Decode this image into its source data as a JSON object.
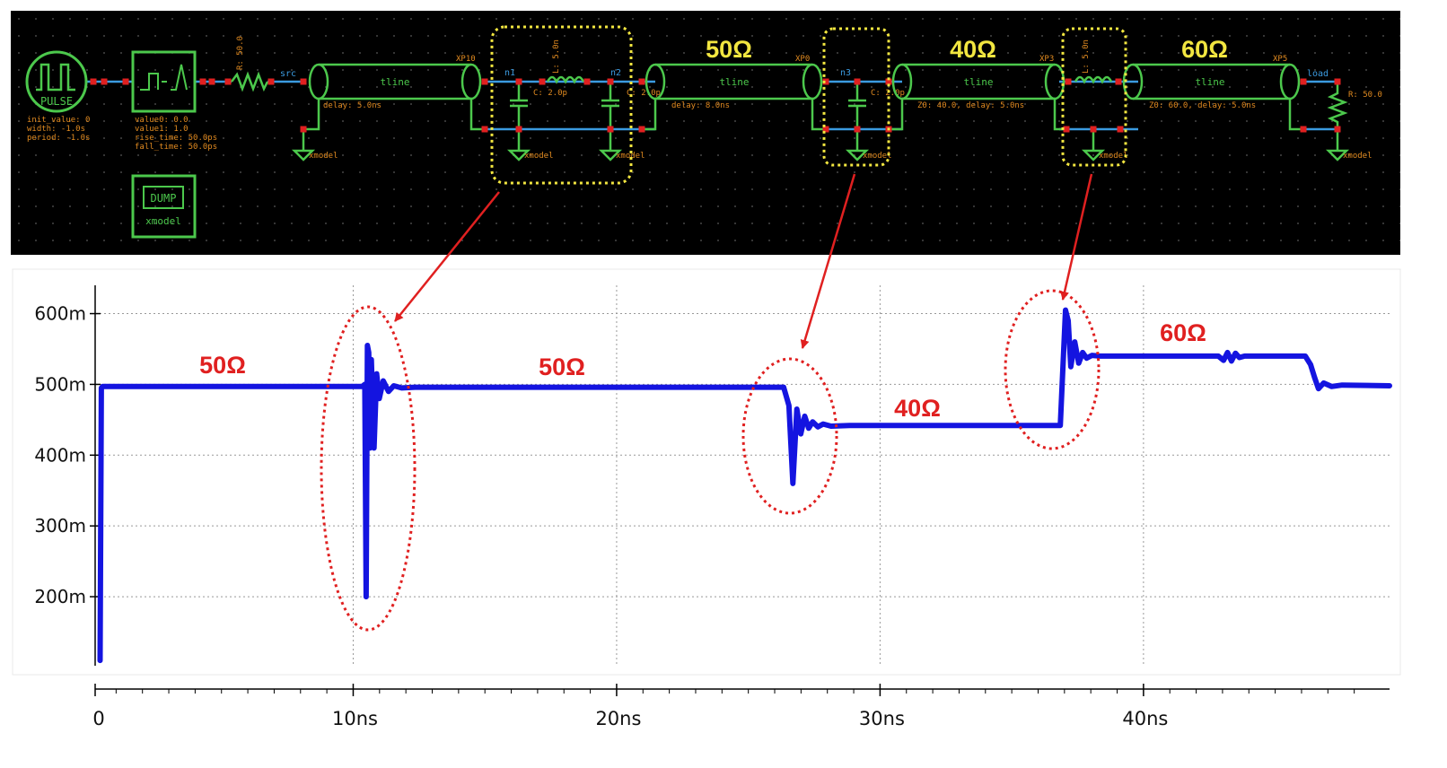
{
  "colors": {
    "schematic_bg": "#000000",
    "component": "#4CC84C",
    "wire": "#3B9BE0",
    "pin": "#E02020",
    "param_text": "#E08A20",
    "highlight_box": "#F2E640",
    "impedance_label_top": "#F2E640",
    "annotation": "#E02020",
    "waveform": "#1414E0",
    "grid": "#999999"
  },
  "schematic": {
    "pulse": {
      "label": "PULSE",
      "params": [
        "init_value: 0",
        "width: -1.0s",
        "period: -1.0s"
      ]
    },
    "source_block": {
      "params": [
        "value0: 0.0",
        "value1: 1.0",
        "rise_time: 50.0ps",
        "fall_time: 50.0ps"
      ]
    },
    "dump": {
      "label": "DUMP",
      "sublabel": "xmodel"
    },
    "resistor_src": {
      "label": "R: 50.0"
    },
    "net_src": "src",
    "tline1": {
      "name": "XP10",
      "label": "tline",
      "param": "delay: 5.0ns"
    },
    "node_n1": "n1",
    "node_n2": "n2",
    "inductor1": "L: 5.0n",
    "cap1": "C: 2.0p",
    "cap2": "C: 2.0p",
    "tline2": {
      "name": "XP0",
      "label": "tline",
      "param": "delay: 8.0ns"
    },
    "node_n3": "n3",
    "cap3": "C: 2.0p",
    "tline3": {
      "name": "XP3",
      "label": "tline",
      "param": "Z0: 40.0, delay: 5.0ns"
    },
    "inductor2": "L: 5.0n",
    "tline4": {
      "name": "XP5",
      "label": "tline",
      "param": "Z0: 60.0, delay: 5.0ns"
    },
    "net_load": "load",
    "resistor_load": "R: 50.0",
    "ground_label": "xmodel",
    "impedance_labels": [
      "50Ω",
      "40Ω",
      "60Ω"
    ]
  },
  "chart_annotations": [
    "50Ω",
    "50Ω",
    "40Ω",
    "60Ω"
  ],
  "chart_data": {
    "type": "line",
    "title": "",
    "xlabel": "",
    "ylabel": "",
    "xlim": [
      0,
      49
    ],
    "ylim": [
      105,
      640
    ],
    "x_ticks": [
      {
        "v": 0,
        "label": "0"
      },
      {
        "v": 10,
        "label": "10ns"
      },
      {
        "v": 20,
        "label": "20ns"
      },
      {
        "v": 30,
        "label": "30ns"
      },
      {
        "v": 40,
        "label": "40ns"
      }
    ],
    "y_ticks": [
      {
        "v": 200,
        "label": "200m"
      },
      {
        "v": 300,
        "label": "300m"
      },
      {
        "v": 400,
        "label": "400m"
      },
      {
        "v": 500,
        "label": "500m"
      },
      {
        "v": 600,
        "label": "600m"
      }
    ],
    "grid": true,
    "series": [
      {
        "x": [
          0.05,
          0.1,
          0.15,
          10.0,
          10.1,
          10.15,
          10.2,
          10.25,
          10.3,
          10.35,
          10.45,
          10.55,
          10.65,
          10.8,
          11.0,
          11.2,
          11.5,
          12.0,
          26.0,
          26.2,
          26.35,
          26.5,
          26.65,
          26.8,
          26.95,
          27.1,
          27.3,
          27.5,
          27.8,
          28.5,
          36.5,
          36.7,
          36.8,
          36.9,
          37.05,
          37.2,
          37.35,
          37.5,
          37.7,
          38.0,
          42.5,
          42.7,
          42.85,
          43.0,
          43.15,
          43.3,
          43.5,
          44.0,
          45.8,
          46.0,
          46.15,
          46.3,
          46.5,
          46.8,
          47.2,
          49.0
        ],
        "y": [
          110,
          495,
          497,
          497,
          500,
          200,
          555,
          545,
          410,
          535,
          410,
          515,
          480,
          505,
          490,
          498,
          495,
          496,
          496,
          470,
          360,
          465,
          430,
          455,
          438,
          447,
          440,
          444,
          441,
          442,
          442,
          605,
          590,
          525,
          560,
          530,
          545,
          537,
          541,
          540,
          540,
          534,
          545,
          533,
          544,
          538,
          540,
          540,
          540,
          528,
          510,
          494,
          502,
          497,
          499,
          498
        ]
      }
    ]
  }
}
